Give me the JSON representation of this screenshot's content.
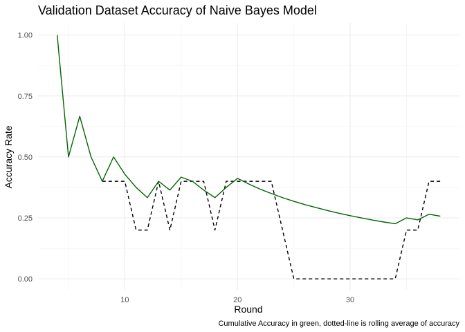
{
  "chart_data": {
    "type": "line",
    "title": "Validation Dataset Accuracy of Naive Bayes Model",
    "xlabel": "Round",
    "ylabel": "Accuracy Rate",
    "caption": "Cumulative Accuracy in green, dotted-line is rolling average of accuracy",
    "xlim": [
      2.3,
      39.7
    ],
    "ylim": [
      -0.045,
      1.05
    ],
    "x_ticks": [
      10,
      20,
      30
    ],
    "x_tick_labels": [
      "10",
      "20",
      "30"
    ],
    "y_ticks": [
      0,
      0.25,
      0.5,
      0.75,
      1.0
    ],
    "y_tick_labels": [
      "0.00",
      "0.25",
      "0.50",
      "0.75",
      "1.00"
    ],
    "grid": true,
    "series": [
      {
        "color": "#006400",
        "linestyle": "solid",
        "x": [
          4,
          5,
          6,
          7,
          8,
          9,
          10,
          11,
          12,
          13,
          14,
          15,
          16,
          17,
          18,
          19,
          20,
          21,
          22,
          23,
          24,
          25,
          26,
          27,
          28,
          29,
          30,
          31,
          32,
          33,
          34,
          35,
          36,
          37,
          38
        ],
        "values": [
          1.0,
          0.5,
          0.667,
          0.5,
          0.4,
          0.5,
          0.429,
          0.375,
          0.333,
          0.4,
          0.364,
          0.417,
          0.4,
          0.364,
          0.333,
          0.375,
          0.412,
          0.389,
          0.368,
          0.35,
          0.333,
          0.318,
          0.304,
          0.292,
          0.28,
          0.269,
          0.259,
          0.25,
          0.241,
          0.233,
          0.226,
          0.25,
          0.242,
          0.265,
          0.257
        ]
      },
      {
        "color": "#000000",
        "linestyle": "dashed",
        "x": [
          8,
          9,
          10,
          11,
          12,
          13,
          14,
          15,
          16,
          17,
          18,
          19,
          20,
          21,
          22,
          23,
          24,
          25,
          26,
          27,
          28,
          29,
          30,
          31,
          32,
          33,
          34,
          35,
          36,
          37,
          38
        ],
        "values": [
          0.4,
          0.4,
          0.4,
          0.2,
          0.2,
          0.4,
          0.2,
          0.4,
          0.4,
          0.4,
          0.2,
          0.4,
          0.4,
          0.4,
          0.4,
          0.4,
          0.2,
          0.0,
          0.0,
          0.0,
          0.0,
          0.0,
          0.0,
          0.0,
          0.0,
          0.0,
          0.0,
          0.2,
          0.2,
          0.4,
          0.4
        ]
      }
    ]
  }
}
